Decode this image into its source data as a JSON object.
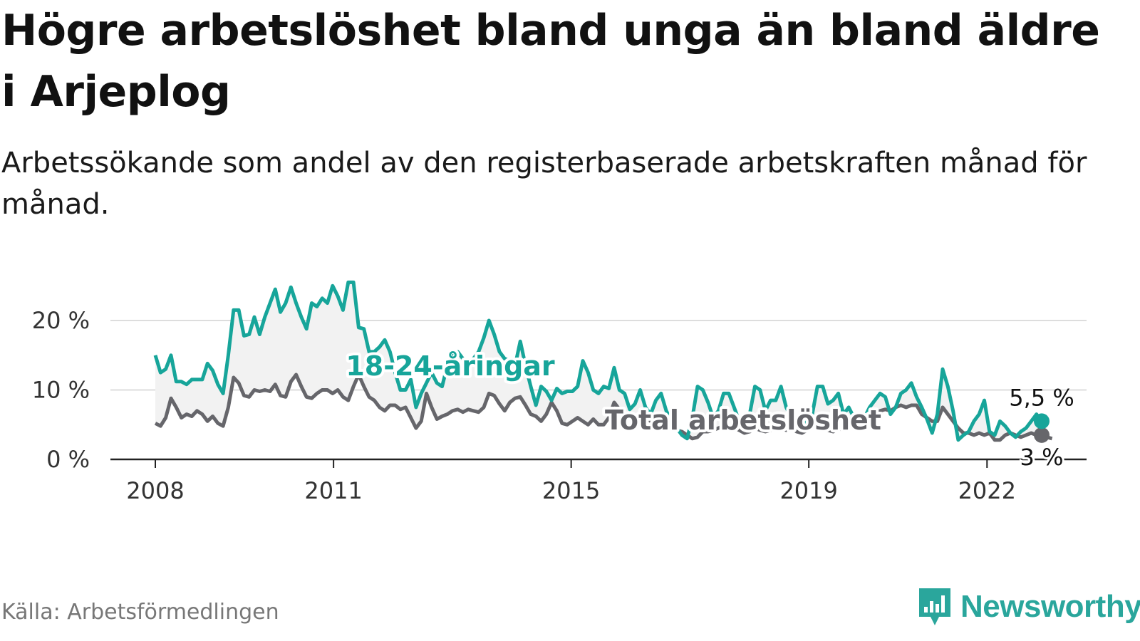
{
  "title": "Högre arbetslöshet bland unga än bland äldre i Arjeplog",
  "subtitle": "Arbetssökande som andel av den registerbaserade arbetskraften månad för månad.",
  "source": "Källa: Arbetsförmedlingen",
  "brand": "Newsworthy",
  "colors": {
    "young": "#17a59a",
    "total": "#66666b",
    "band": "#f2f2f2",
    "brand": "#2aa69c"
  },
  "chart_data": {
    "type": "line",
    "title": "Högre arbetslöshet bland unga än bland äldre i Arjeplog",
    "xlabel": "",
    "ylabel": "",
    "x_range": [
      2008.0,
      2022.92
    ],
    "ylim": [
      0,
      25
    ],
    "y_ticks": [
      0,
      10,
      20
    ],
    "y_tick_labels": [
      "0 %",
      "10 %",
      "20 %"
    ],
    "x_ticks": [
      2008,
      2011,
      2015,
      2019,
      2022
    ],
    "x_tick_labels": [
      "2008",
      "2011",
      "2015",
      "2019",
      "2022"
    ],
    "grid": true,
    "series": [
      {
        "name": "18-24-åringar",
        "label": "18-24-åringar",
        "end_label": "5,5 %",
        "values": [
          15.0,
          12.5,
          13.0,
          15.0,
          11.2,
          11.2,
          10.8,
          11.5,
          11.5,
          11.5,
          13.8,
          12.8,
          10.8,
          9.5,
          15.0,
          21.5,
          21.5,
          17.8,
          18.0,
          20.5,
          18.0,
          20.5,
          22.5,
          24.5,
          21.2,
          22.5,
          24.8,
          22.5,
          20.5,
          18.8,
          22.5,
          22.0,
          23.2,
          22.5,
          25.0,
          23.5,
          21.5,
          25.5,
          25.5,
          19.0,
          18.8,
          15.5,
          15.5,
          16.2,
          17.2,
          15.5,
          12.5,
          10.0,
          10.0,
          11.5,
          7.5,
          9.5,
          11.0,
          12.5,
          11.0,
          10.5,
          13.5,
          15.5,
          15.5,
          14.5,
          13.8,
          14.5,
          15.5,
          17.5,
          20.0,
          18.0,
          15.5,
          14.5,
          14.2,
          13.5,
          17.0,
          13.5,
          10.5,
          7.8,
          10.5,
          9.8,
          8.5,
          10.2,
          9.5,
          9.8,
          9.8,
          10.5,
          14.2,
          12.5,
          10.0,
          9.5,
          10.5,
          10.2,
          13.2,
          10.0,
          9.5,
          7.2,
          8.0,
          10.0,
          7.5,
          6.5,
          8.5,
          9.5,
          7.0,
          5.5,
          4.5,
          3.5,
          3.0,
          6.0,
          10.5,
          10.0,
          8.2,
          6.0,
          7.0,
          9.5,
          9.5,
          7.5,
          5.5,
          4.5,
          6.5,
          10.5,
          10.0,
          7.0,
          8.5,
          8.5,
          10.5,
          7.5,
          6.0,
          5.5,
          5.5,
          5.2,
          6.5,
          10.5,
          10.5,
          8.0,
          8.5,
          9.5,
          6.5,
          7.5,
          6.0,
          5.5,
          6.0,
          7.5,
          8.5,
          9.5,
          9.0,
          6.5,
          7.5,
          9.5,
          10.0,
          11.0,
          9.0,
          7.5,
          5.8,
          3.8,
          6.5,
          13.0,
          10.5,
          7.0,
          2.8,
          3.5,
          4.0,
          5.5,
          6.5,
          8.5,
          4.0,
          3.5,
          5.5,
          4.8,
          3.8,
          3.2,
          4.0,
          4.5,
          5.5,
          6.5,
          5.5
        ]
      },
      {
        "name": "Total arbetslöshet",
        "label": "Total arbetslöshet",
        "end_label": "3 %",
        "values": [
          5.2,
          4.8,
          6.0,
          8.8,
          7.5,
          6.0,
          6.5,
          6.2,
          7.0,
          6.5,
          5.5,
          6.2,
          5.2,
          4.8,
          7.5,
          11.8,
          11.0,
          9.2,
          9.0,
          10.0,
          9.8,
          10.0,
          9.8,
          10.8,
          9.2,
          9.0,
          11.2,
          12.2,
          10.5,
          9.0,
          8.8,
          9.5,
          10.0,
          10.0,
          9.5,
          10.0,
          9.0,
          8.5,
          10.5,
          12.2,
          10.5,
          9.0,
          8.5,
          7.5,
          7.0,
          7.8,
          7.8,
          7.2,
          7.5,
          6.0,
          4.5,
          5.5,
          9.5,
          7.5,
          5.8,
          6.2,
          6.5,
          7.0,
          7.2,
          6.8,
          7.2,
          7.0,
          6.8,
          7.5,
          9.5,
          9.2,
          8.0,
          7.0,
          8.2,
          8.8,
          9.0,
          7.8,
          6.5,
          6.2,
          5.5,
          6.5,
          8.2,
          7.0,
          5.2,
          5.0,
          5.5,
          6.0,
          5.5,
          5.0,
          5.8,
          5.0,
          5.0,
          6.0,
          8.2,
          7.2,
          6.5,
          6.5,
          6.2,
          6.5,
          6.0,
          5.5,
          5.0,
          5.5,
          5.0,
          4.5,
          4.2,
          4.0,
          3.5,
          3.0,
          3.2,
          4.0,
          4.0,
          4.2,
          4.5,
          4.8,
          4.5,
          4.5,
          4.2,
          3.8,
          4.0,
          4.5,
          4.2,
          4.0,
          4.2,
          4.5,
          4.5,
          4.2,
          4.5,
          4.0,
          3.8,
          4.2,
          4.5,
          4.8,
          4.5,
          4.2,
          4.0,
          4.5,
          4.2,
          4.8,
          5.0,
          5.5,
          5.2,
          5.5,
          6.0,
          7.0,
          7.2,
          7.0,
          7.5,
          7.8,
          7.5,
          7.8,
          7.8,
          6.5,
          6.0,
          5.5,
          5.5,
          7.5,
          6.5,
          5.5,
          4.5,
          3.8,
          3.8,
          3.5,
          3.8,
          3.5,
          3.8,
          2.8,
          2.8,
          3.5,
          3.8,
          3.5,
          3.2,
          3.5,
          3.8,
          3.5,
          3.5,
          3.2,
          3.0
        ]
      }
    ]
  }
}
